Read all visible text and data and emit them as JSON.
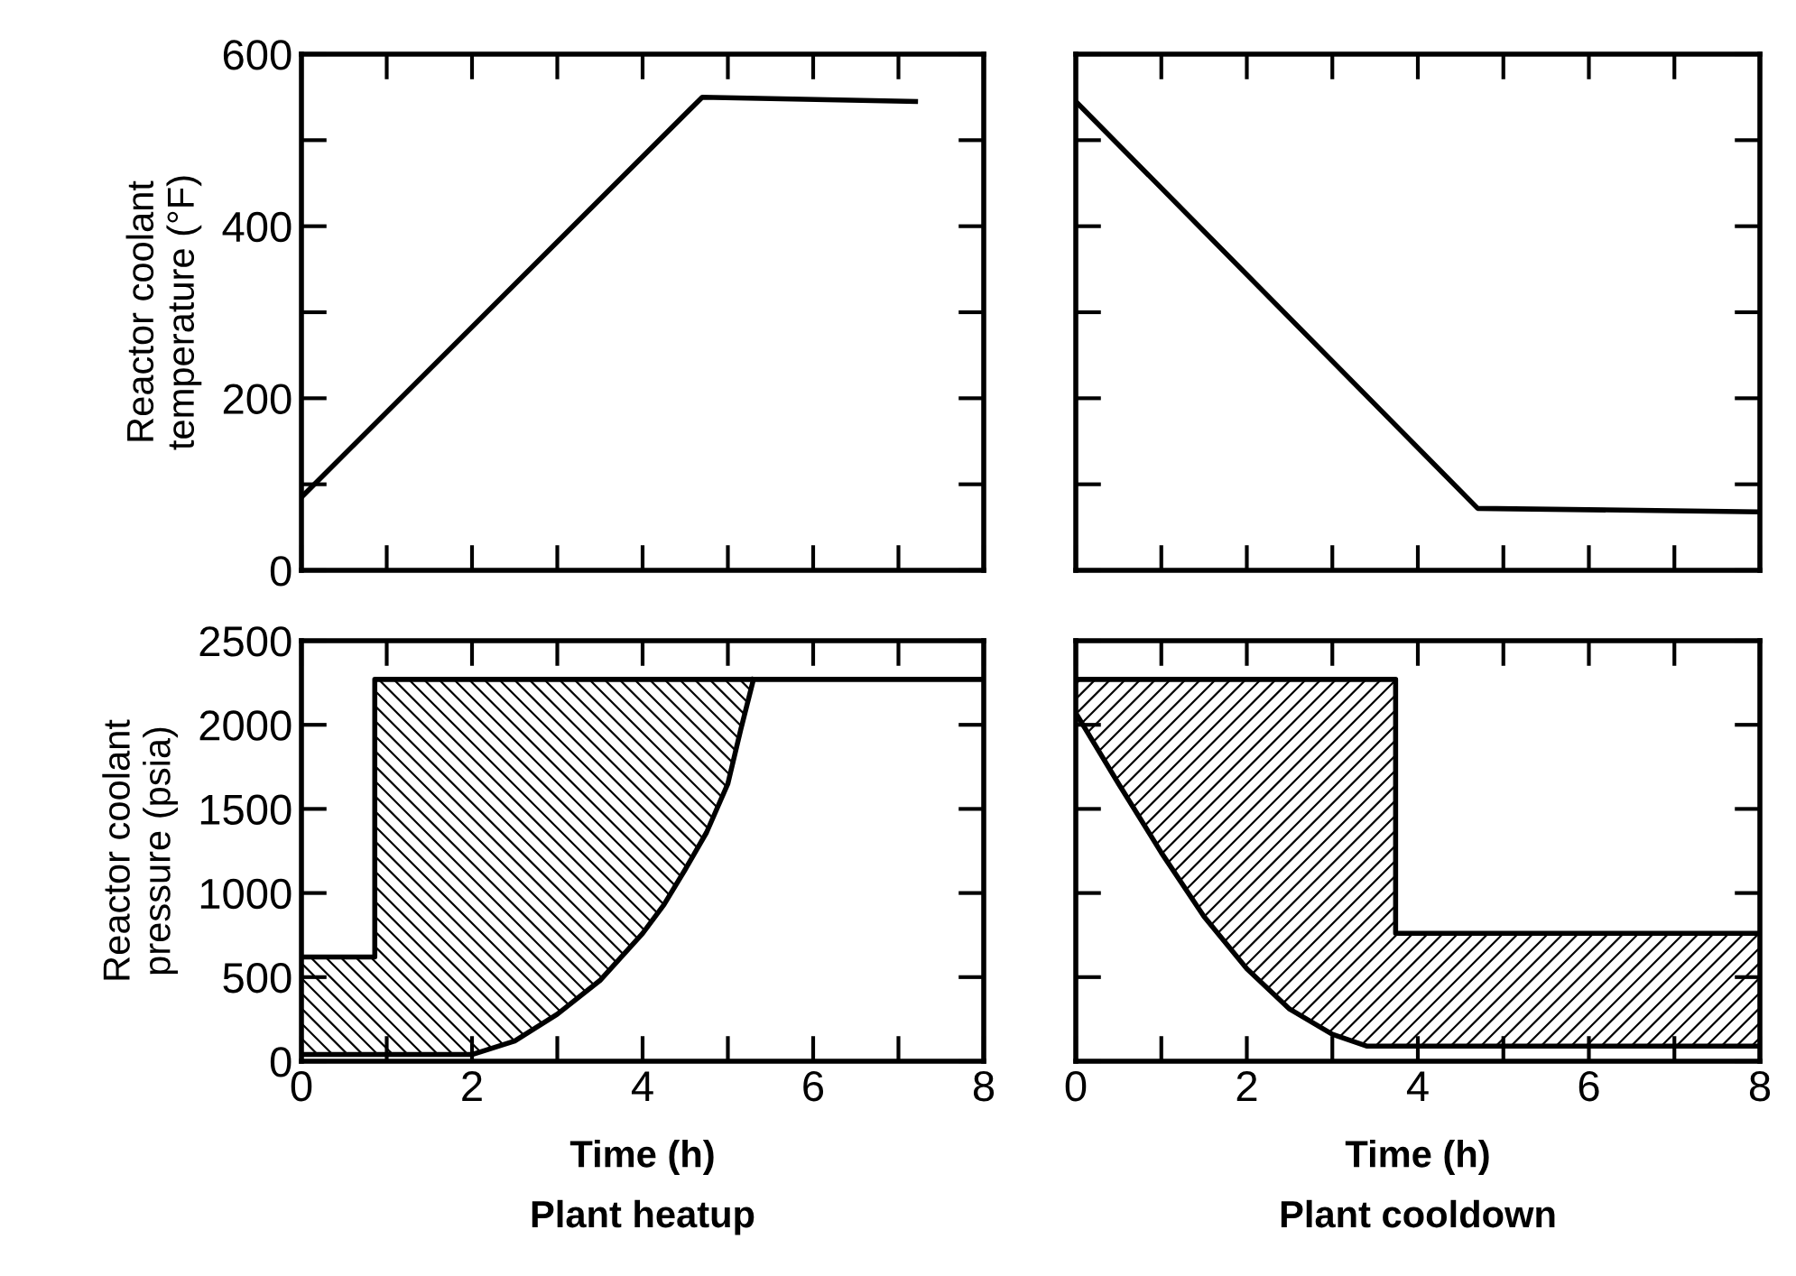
{
  "chart_data": [
    {
      "type": "line",
      "ylabel": "Reactor coolant\ntemperature (°F)",
      "xlim": [
        0,
        8
      ],
      "ylim": [
        0,
        600
      ],
      "xticks": [
        0,
        1,
        2,
        3,
        4,
        5,
        6,
        7,
        8
      ],
      "yticks": [
        0,
        {
          "value": 100,
          "label": null
        },
        200,
        {
          "value": 300,
          "label": null
        },
        400,
        {
          "value": 500,
          "label": null
        },
        600
      ],
      "tick_labels": "y",
      "grid": false,
      "legend": false,
      "series": [
        {
          "color": "#000000",
          "x": [
            0,
            4.7,
            7.2
          ],
          "values": [
            85,
            550,
            545
          ]
        }
      ]
    },
    {
      "type": "line",
      "xlim": [
        0,
        8
      ],
      "ylim": [
        0,
        600
      ],
      "xticks": [
        0,
        1,
        2,
        3,
        4,
        5,
        6,
        7,
        8
      ],
      "yticks": [
        0,
        100,
        200,
        300,
        400,
        500,
        600
      ],
      "tick_labels": false,
      "grid": false,
      "legend": false,
      "series": [
        {
          "color": "#000000",
          "x": [
            0,
            4.7,
            8
          ],
          "values": [
            545,
            72,
            68
          ]
        }
      ]
    },
    {
      "type": "line",
      "ylabel": "Reactor coolant\npressure (psia)",
      "xlabel": "Time (h)",
      "annotations": [
        "Plant heatup"
      ],
      "xlim": [
        0,
        8
      ],
      "ylim": [
        0,
        2500
      ],
      "xticks": [
        0,
        {
          "value": 1,
          "label": null
        },
        2,
        {
          "value": 3,
          "label": null
        },
        4,
        {
          "value": 5,
          "label": null
        },
        6,
        {
          "value": 7,
          "label": null
        },
        8
      ],
      "yticks": [
        0,
        500,
        1000,
        1500,
        2000,
        2500
      ],
      "grid": false,
      "legend": false,
      "series": [
        {
          "color": "#000000",
          "x": [
            0,
            0.86,
            0.86,
            8
          ],
          "values": [
            620,
            620,
            2270,
            2270
          ]
        },
        {
          "color": "#000000",
          "x": [
            0,
            0.86,
            0.86,
            2,
            2.5,
            3,
            3.5,
            4,
            4.25,
            4.5,
            4.75,
            5,
            5.15,
            5.3
          ],
          "values": [
            40,
            40,
            40,
            40,
            120,
            280,
            480,
            760,
            930,
            1140,
            1360,
            1650,
            1970,
            2270
          ],
          "lower": [
            40,
            40,
            40,
            40,
            120,
            280,
            480,
            760,
            930,
            1140,
            1360,
            1650,
            1970,
            2270
          ],
          "upper": [
            620,
            620,
            2270,
            2270,
            2270,
            2270,
            2270,
            2270,
            2270,
            2270,
            2270,
            2270,
            2270,
            2270
          ]
        }
      ]
    },
    {
      "type": "line",
      "xlabel": "Time (h)",
      "annotations": [
        "Plant cooldown"
      ],
      "xlim": [
        0,
        8
      ],
      "ylim": [
        0,
        2500
      ],
      "xticks": [
        0,
        {
          "value": 1,
          "label": null
        },
        2,
        {
          "value": 3,
          "label": null
        },
        4,
        {
          "value": 5,
          "label": null
        },
        6,
        {
          "value": 7,
          "label": null
        },
        8
      ],
      "yticks": [
        0,
        500,
        1000,
        1500,
        2000,
        2500
      ],
      "tick_labels": "x",
      "grid": false,
      "legend": false,
      "series": [
        {
          "color": "#000000",
          "x": [
            0,
            3.74,
            3.74,
            8
          ],
          "values": [
            2270,
            2270,
            760,
            760
          ]
        },
        {
          "color": "#000000",
          "x": [
            0,
            0.5,
            1,
            1.5,
            2,
            2.5,
            3,
            3.4,
            3.74,
            3.74,
            8
          ],
          "values": [
            2070,
            1650,
            1240,
            860,
            550,
            310,
            160,
            90,
            90,
            90,
            90
          ],
          "lower": [
            2070,
            1650,
            1240,
            860,
            550,
            310,
            160,
            90,
            90,
            90,
            90
          ],
          "upper": [
            2270,
            2270,
            2270,
            2270,
            2270,
            2270,
            2270,
            2270,
            2270,
            760,
            760
          ]
        }
      ]
    }
  ]
}
